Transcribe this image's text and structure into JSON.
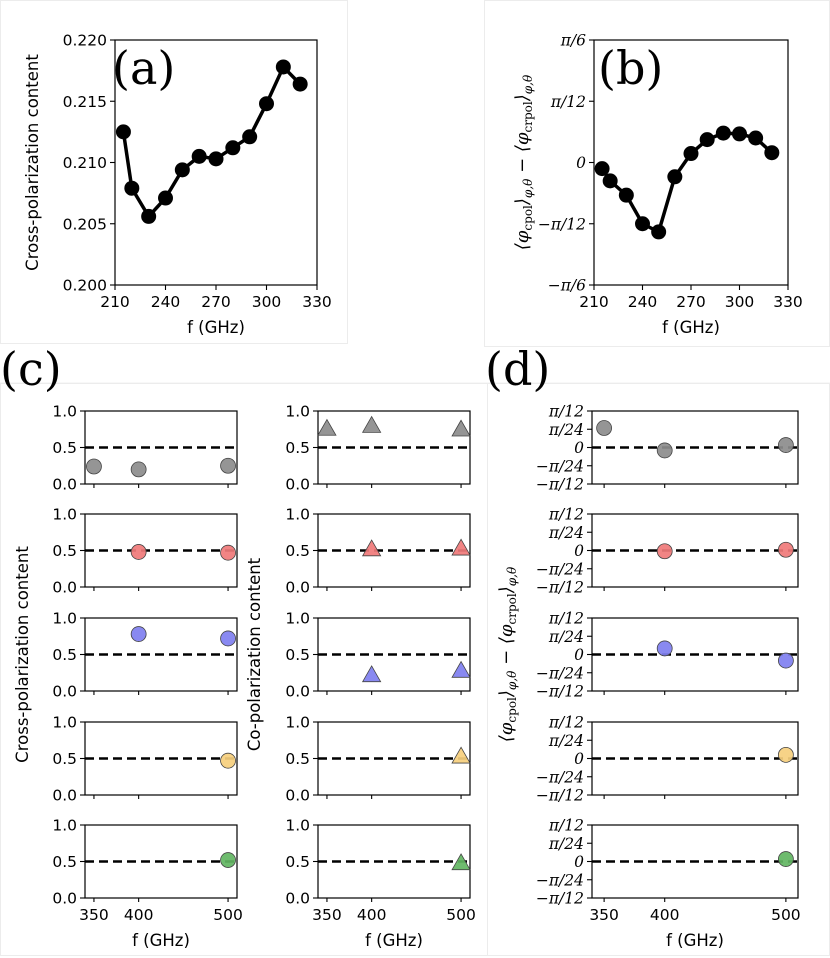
{
  "chart_data": [
    {
      "id": "a",
      "panel_label": "(a)",
      "type": "line",
      "title": "",
      "xlabel": "f (GHz)",
      "ylabel": "Cross-polarization content",
      "xlim": [
        210,
        330
      ],
      "ylim": [
        0.2,
        0.22
      ],
      "xticks": [
        "210",
        "240",
        "270",
        "300",
        "330"
      ],
      "yticks": [
        "0.200",
        "0.205",
        "0.210",
        "0.215",
        "0.220"
      ],
      "x": [
        215,
        220,
        230,
        240,
        250,
        260,
        270,
        280,
        290,
        300,
        310,
        320
      ],
      "y": [
        0.2125,
        0.2079,
        0.2056,
        0.2071,
        0.2094,
        0.2105,
        0.2103,
        0.2112,
        0.2121,
        0.2148,
        0.2178,
        0.2164
      ],
      "marker": "circle",
      "color": "#000000"
    },
    {
      "id": "b",
      "panel_label": "(b)",
      "type": "line",
      "title": "",
      "xlabel": "f (GHz)",
      "ylabel": "⟨φcpol⟩φ,θ − ⟨φcrpol⟩φ,θ",
      "ylabel_parts": {
        "a": "⟨φ",
        "sa": "cpol",
        "b": "⟩",
        "sb": "φ,θ",
        "c": " − ⟨φ",
        "sc": "crpol",
        "d": "⟩",
        "sd": "φ,θ"
      },
      "xlim": [
        210,
        330
      ],
      "ylim": [
        -30,
        30
      ],
      "y_units": "degrees",
      "xticks": [
        "210",
        "240",
        "270",
        "300",
        "330"
      ],
      "yticks": [
        "−π/6",
        "−π/12",
        "0",
        "π/12",
        "π/6"
      ],
      "x": [
        215,
        220,
        230,
        240,
        250,
        260,
        270,
        280,
        290,
        300,
        310,
        320
      ],
      "y": [
        -1.5,
        -4.5,
        -8.0,
        -15.0,
        -17.0,
        -3.5,
        2.2,
        5.6,
        7.2,
        7.0,
        6.0,
        2.4
      ],
      "marker": "circle",
      "color": "#000000"
    },
    {
      "id": "c",
      "panel_label": "(c)",
      "type": "scatter",
      "xlabel": "f (GHz)",
      "ylabel": "Cross-polarization content",
      "xlim": [
        340,
        510
      ],
      "ylim": [
        0,
        1
      ],
      "xticks": [
        "350",
        "400",
        "500"
      ],
      "yticks": [
        "0.0",
        "0.5",
        "1.0"
      ],
      "reference_line": 0.5,
      "marker": "circle",
      "rows": [
        {
          "color": "#8c8c8c",
          "x": [
            350,
            400,
            500
          ],
          "y": [
            0.24,
            0.2,
            0.25
          ]
        },
        {
          "color": "#f07a7a",
          "x": [
            400,
            500
          ],
          "y": [
            0.48,
            0.47
          ]
        },
        {
          "color": "#7f7ff0",
          "x": [
            400,
            500
          ],
          "y": [
            0.78,
            0.72
          ]
        },
        {
          "color": "#f6cf7d",
          "x": [
            500
          ],
          "y": [
            0.47
          ]
        },
        {
          "color": "#62b562",
          "x": [
            500
          ],
          "y": [
            0.52
          ]
        }
      ]
    },
    {
      "id": "c2",
      "panel_label": "",
      "type": "scatter",
      "xlabel": "f (GHz)",
      "ylabel": "Co-polarization content",
      "xlim": [
        340,
        510
      ],
      "ylim": [
        0,
        1
      ],
      "xticks": [
        "350",
        "400",
        "500"
      ],
      "yticks": [
        "0.0",
        "0.5",
        "1.0"
      ],
      "reference_line": 0.5,
      "marker": "triangle",
      "rows": [
        {
          "color": "#8c8c8c",
          "x": [
            350,
            400,
            500
          ],
          "y": [
            0.76,
            0.8,
            0.75
          ]
        },
        {
          "color": "#f07a7a",
          "x": [
            400,
            500
          ],
          "y": [
            0.52,
            0.53
          ]
        },
        {
          "color": "#7f7ff0",
          "x": [
            400,
            500
          ],
          "y": [
            0.22,
            0.28
          ]
        },
        {
          "color": "#f6cf7d",
          "x": [
            500
          ],
          "y": [
            0.53
          ]
        },
        {
          "color": "#62b562",
          "x": [
            500
          ],
          "y": [
            0.48
          ]
        }
      ]
    },
    {
      "id": "d",
      "panel_label": "(d)",
      "type": "scatter",
      "xlabel": "f (GHz)",
      "ylabel": "⟨φcpol⟩φ,θ − ⟨φcrpol⟩φ,θ",
      "ylabel_parts": {
        "a": "⟨φ",
        "sa": "cpol",
        "b": "⟩",
        "sb": "φ,θ",
        "c": " − ⟨φ",
        "sc": "crpol",
        "d": "⟩",
        "sd": "φ,θ"
      },
      "xlim": [
        340,
        510
      ],
      "ylim": [
        -15,
        15
      ],
      "y_units": "degrees",
      "xticks": [
        "350",
        "400",
        "500"
      ],
      "yticks": [
        "−π/12",
        "−π/24",
        "0",
        "π/24",
        "π/12"
      ],
      "reference_line": 0,
      "marker": "circle",
      "rows": [
        {
          "color": "#8c8c8c",
          "x": [
            350,
            400,
            500
          ],
          "y": [
            8.0,
            -1.2,
            1.0
          ]
        },
        {
          "color": "#f07a7a",
          "x": [
            400,
            500
          ],
          "y": [
            -0.3,
            0.3
          ]
        },
        {
          "color": "#7f7ff0",
          "x": [
            400,
            500
          ],
          "y": [
            2.5,
            -2.5
          ]
        },
        {
          "color": "#f6cf7d",
          "x": [
            500
          ],
          "y": [
            1.5
          ]
        },
        {
          "color": "#62b562",
          "x": [
            500
          ],
          "y": [
            1.0
          ]
        }
      ]
    }
  ]
}
